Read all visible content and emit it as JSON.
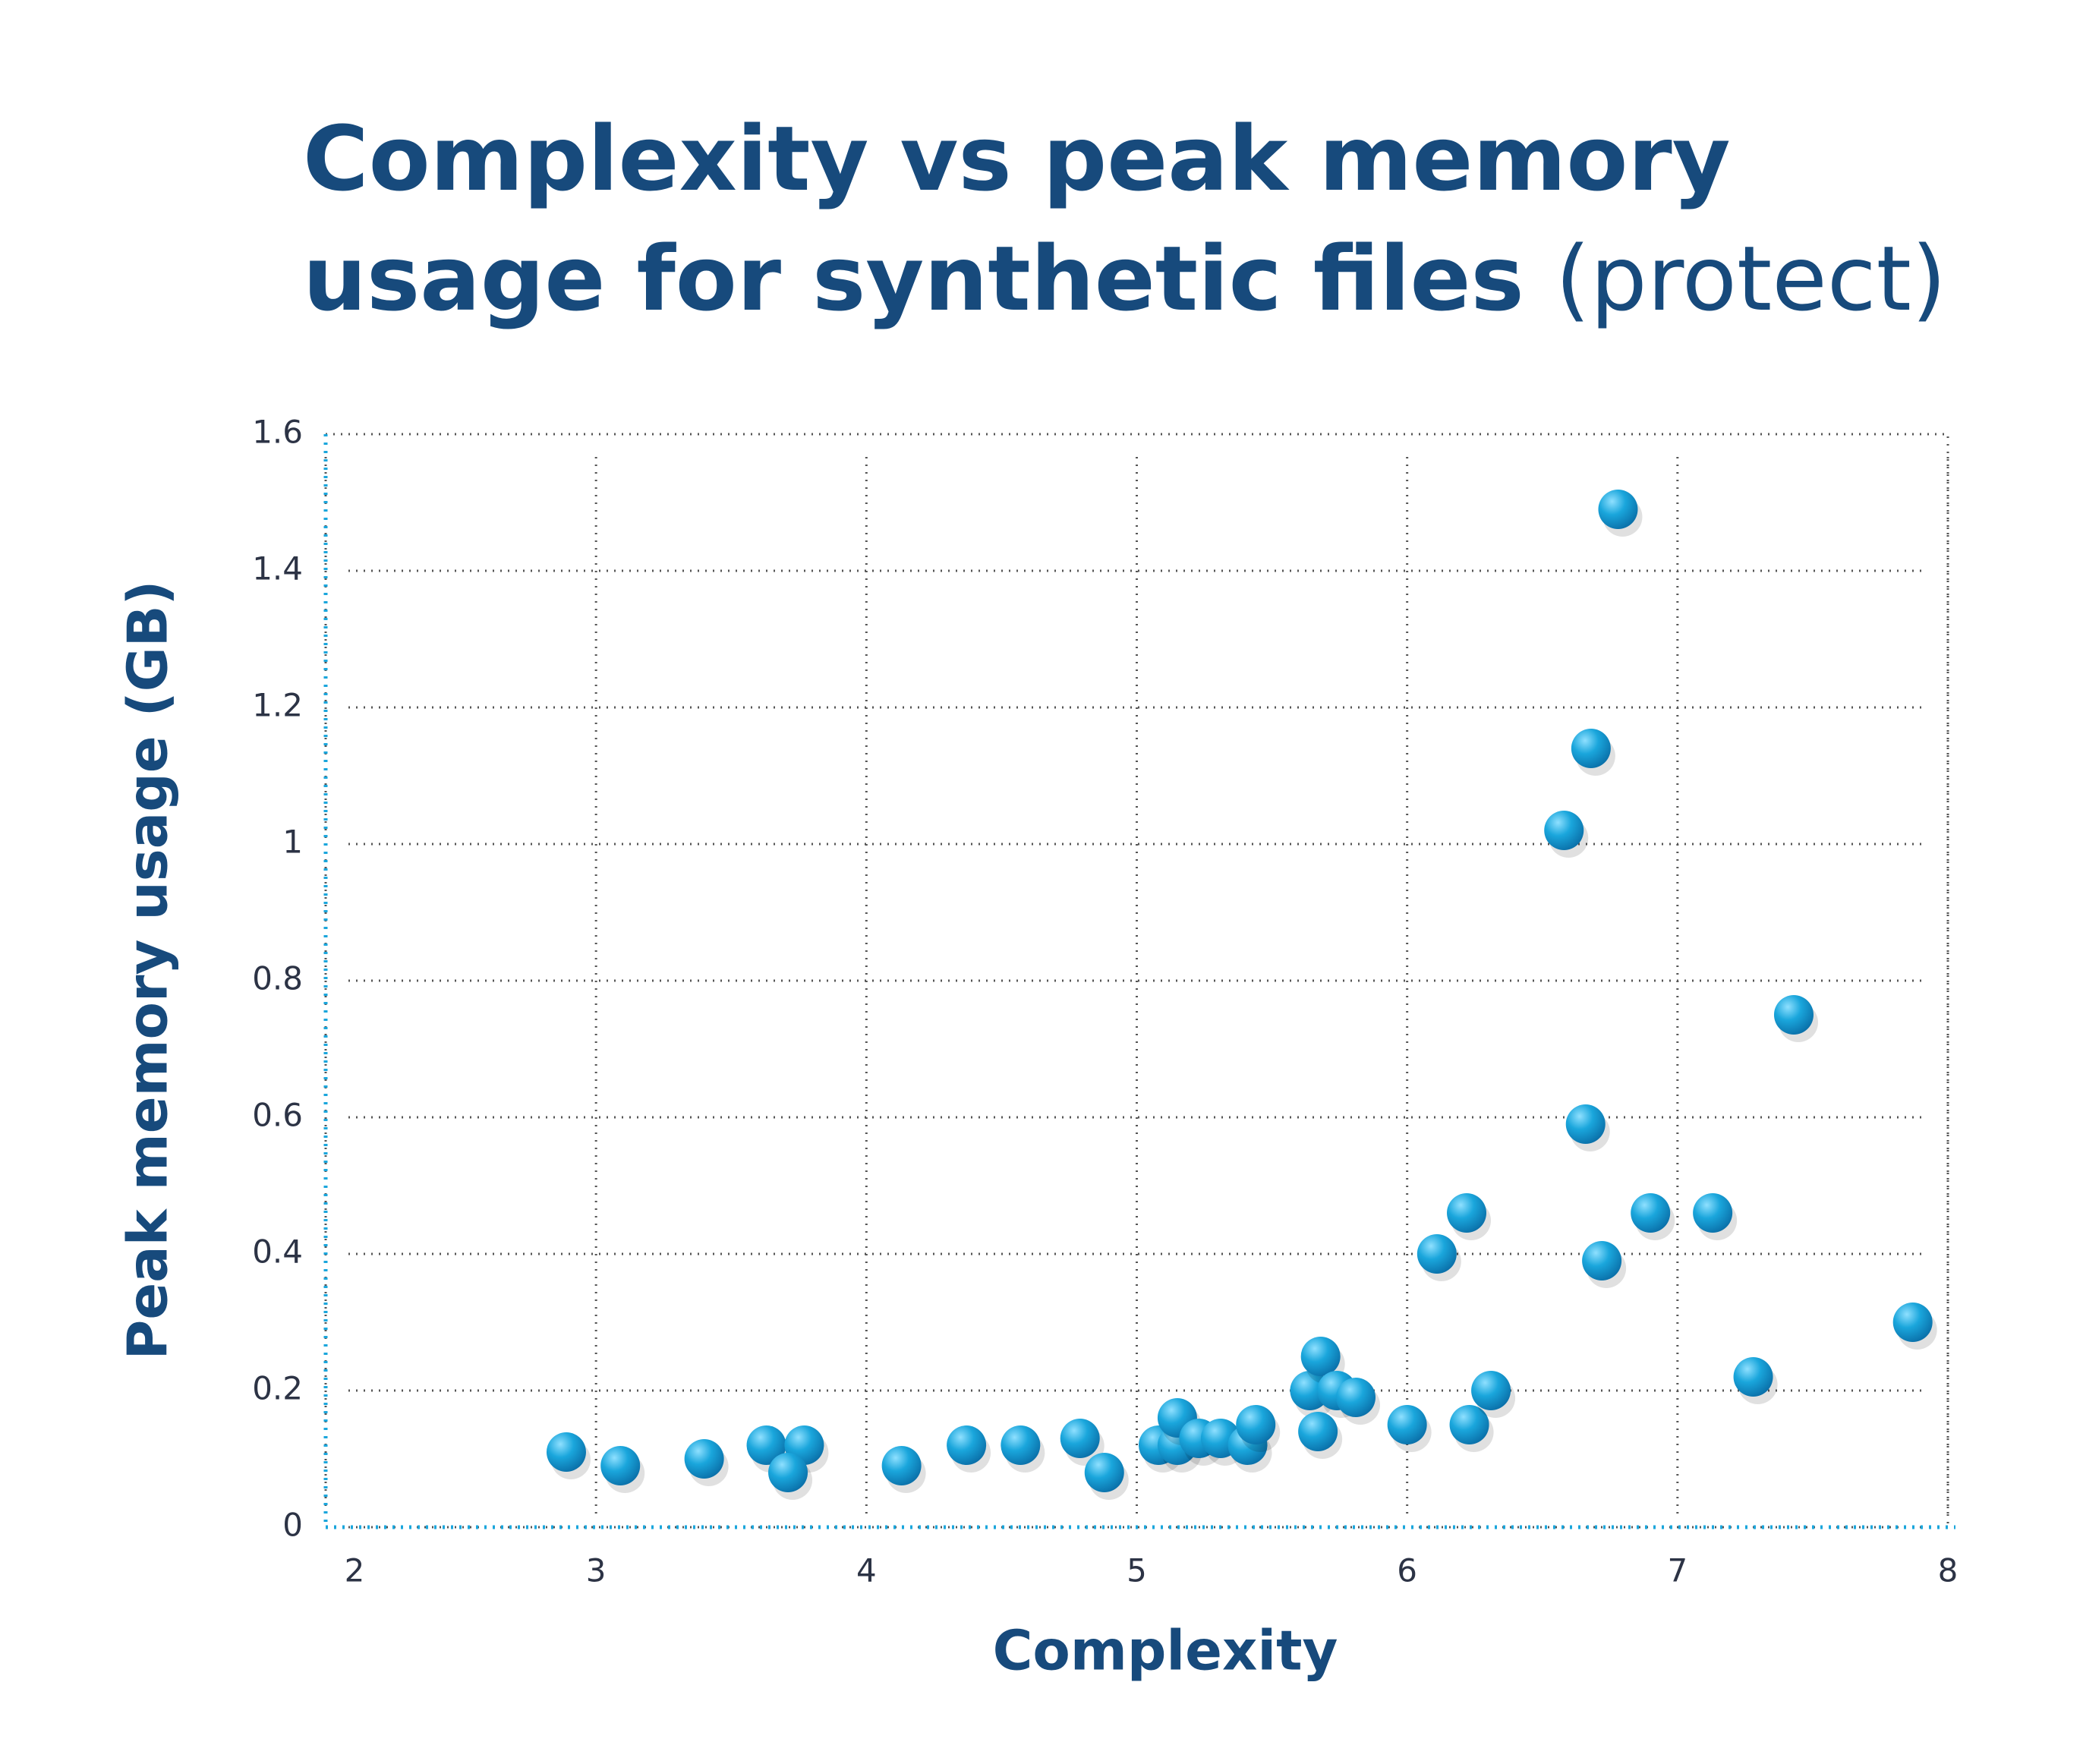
{
  "chart_data": {
    "type": "scatter",
    "title": "Complexity vs peak memory usage for synthetic files",
    "subtitle": "(protect)",
    "x_label": "Complexity",
    "y_label": "Peak memory usage (GB)",
    "color": "#1aa6dc",
    "grid": true,
    "xlim": [
      2,
      8
    ],
    "xticks": [
      2,
      3,
      4,
      5,
      6,
      7,
      8
    ],
    "ylim": [
      0,
      1.6
    ],
    "yticks": [
      0,
      0.2,
      0.4,
      0.6,
      0.8,
      1,
      1.2,
      1.4,
      1.6
    ],
    "x": [
      2.89,
      3.09,
      3.4,
      3.63,
      3.77,
      3.71,
      4.13,
      4.37,
      4.57,
      4.79,
      4.88,
      5.08,
      5.15,
      5.15,
      5.23,
      5.31,
      5.41,
      5.44,
      5.64,
      5.68,
      5.67,
      5.74,
      5.81,
      6.0,
      6.11,
      6.22,
      6.23,
      6.31,
      6.58,
      6.68,
      6.78,
      6.66,
      6.72,
      6.9,
      7.13,
      7.28,
      7.43,
      7.87
    ],
    "y": [
      0.11,
      0.09,
      0.1,
      0.12,
      0.12,
      0.08,
      0.09,
      0.12,
      0.12,
      0.13,
      0.08,
      0.12,
      0.12,
      0.16,
      0.13,
      0.13,
      0.12,
      0.15,
      0.2,
      0.25,
      0.14,
      0.2,
      0.19,
      0.15,
      0.4,
      0.46,
      0.15,
      0.2,
      1.02,
      1.14,
      1.49,
      0.59,
      0.39,
      0.46,
      0.46,
      0.22,
      0.75,
      0.3
    ]
  }
}
